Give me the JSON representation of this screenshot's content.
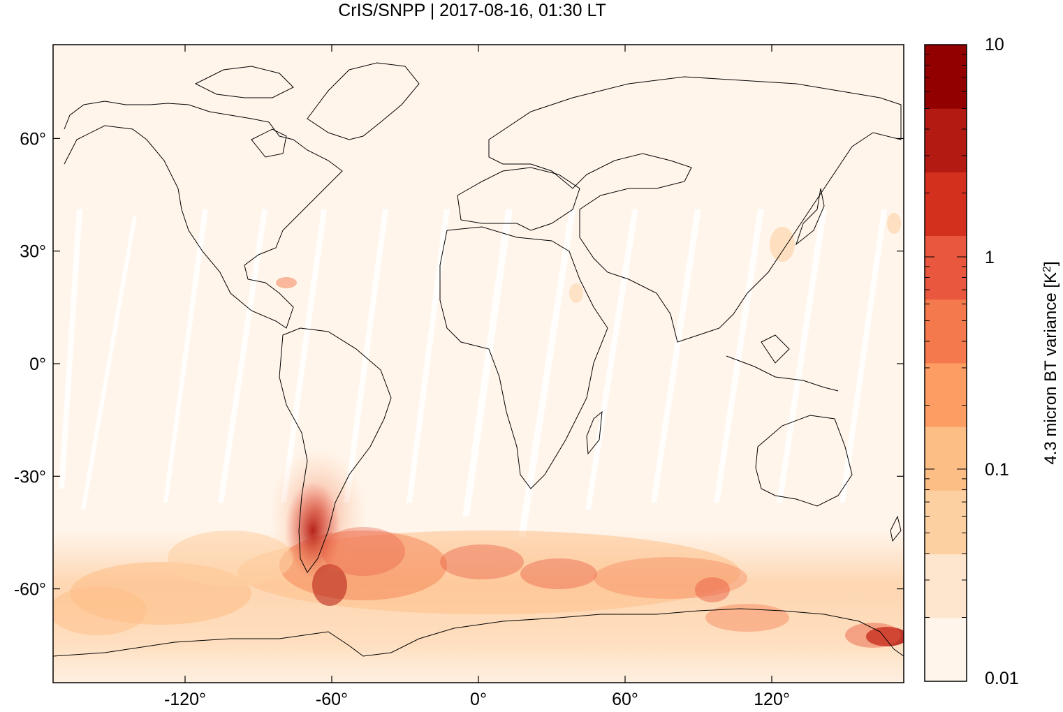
{
  "title": "CrIS/SNPP | 2017-08-16, 01:30 LT",
  "map": {
    "lon_range": [
      -174,
      174
    ],
    "lat_range": [
      -85,
      85
    ],
    "x_ticks": [
      {
        "value": -120,
        "label": "-120°"
      },
      {
        "value": -60,
        "label": "-60°"
      },
      {
        "value": 0,
        "label": "0°"
      },
      {
        "value": 60,
        "label": "60°"
      },
      {
        "value": 120,
        "label": "120°"
      }
    ],
    "y_ticks": [
      {
        "value": 60,
        "label": "60°"
      },
      {
        "value": 30,
        "label": "30°"
      },
      {
        "value": 0,
        "label": "0°"
      },
      {
        "value": -30,
        "label": "-30°"
      },
      {
        "value": -60,
        "label": "-60°"
      }
    ],
    "background_color": "#fff5eb"
  },
  "colorbar": {
    "scale": "log",
    "range": [
      0.01,
      10
    ],
    "label_main": "4.3 micron BT variance [K",
    "label_sup": "2",
    "label_end": "]",
    "tick_labels": [
      {
        "value": 10,
        "label": "10"
      },
      {
        "value": 1,
        "label": "1"
      },
      {
        "value": 0.1,
        "label": "0.1"
      },
      {
        "value": 0.01,
        "label": "0.01"
      }
    ],
    "colors": [
      "#fff5eb",
      "#fee6ce",
      "#fdd0a2",
      "#fdbe85",
      "#fd9d64",
      "#f4794c",
      "#e9583e",
      "#d3301e",
      "#b21a12",
      "#920000"
    ]
  }
}
